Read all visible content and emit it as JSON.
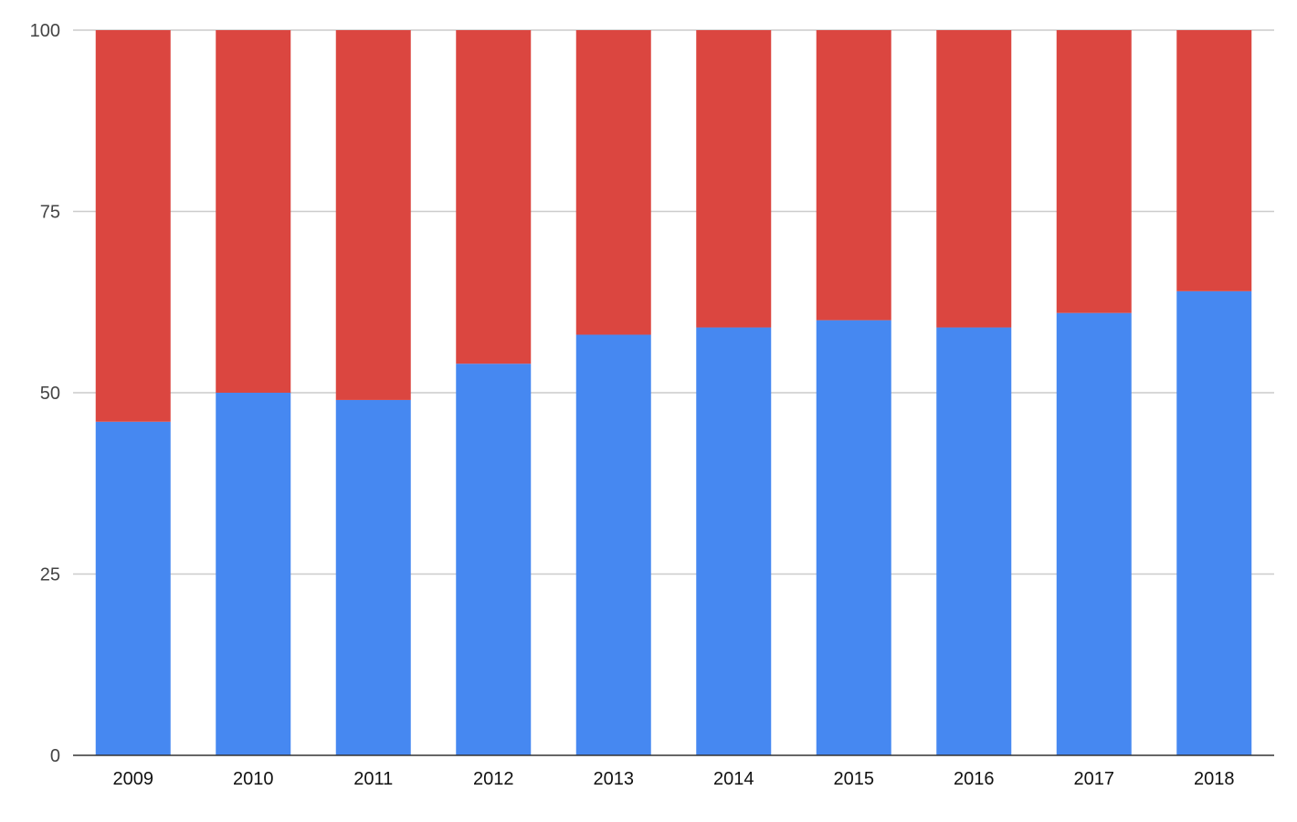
{
  "chart_data": {
    "type": "bar",
    "stacked": true,
    "title": "",
    "xlabel": "",
    "ylabel": "",
    "categories": [
      "2009",
      "2010",
      "2011",
      "2012",
      "2013",
      "2014",
      "2015",
      "2016",
      "2017",
      "2018"
    ],
    "series": [
      {
        "color": "#4688f1",
        "values": [
          46,
          50,
          49,
          54,
          58,
          59,
          60,
          59,
          61,
          64
        ]
      },
      {
        "color": "#db4640",
        "values": [
          54,
          50,
          51,
          46,
          42,
          41,
          40,
          41,
          39,
          36
        ]
      }
    ],
    "ylim": [
      0,
      100
    ],
    "yticks": [
      "0",
      "25",
      "50",
      "75",
      "100"
    ],
    "grid": true,
    "legend": "none"
  }
}
